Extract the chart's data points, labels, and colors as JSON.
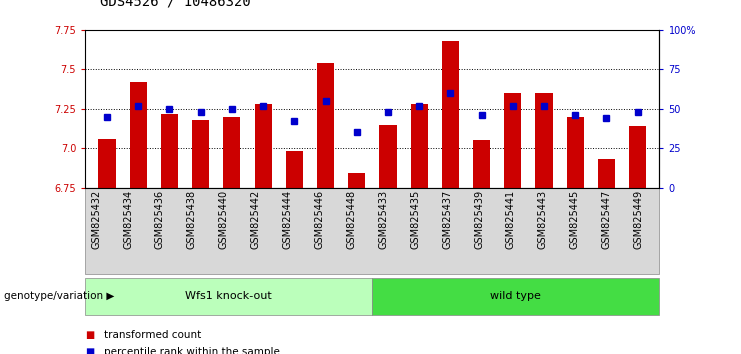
{
  "title": "GDS4526 / 10486320",
  "samples": [
    "GSM825432",
    "GSM825434",
    "GSM825436",
    "GSM825438",
    "GSM825440",
    "GSM825442",
    "GSM825444",
    "GSM825446",
    "GSM825448",
    "GSM825433",
    "GSM825435",
    "GSM825437",
    "GSM825439",
    "GSM825441",
    "GSM825443",
    "GSM825445",
    "GSM825447",
    "GSM825449"
  ],
  "bar_values": [
    7.06,
    7.42,
    7.22,
    7.18,
    7.2,
    7.28,
    6.98,
    7.54,
    6.84,
    7.15,
    7.28,
    7.68,
    7.05,
    7.35,
    7.35,
    7.2,
    6.93,
    7.14
  ],
  "blue_values": [
    45,
    52,
    50,
    48,
    50,
    52,
    42,
    55,
    35,
    48,
    52,
    60,
    46,
    52,
    52,
    46,
    44,
    48
  ],
  "ylim_left": [
    6.75,
    7.75
  ],
  "ylim_right": [
    0,
    100
  ],
  "yticks_left": [
    6.75,
    7.0,
    7.25,
    7.5,
    7.75
  ],
  "yticks_right": [
    0,
    25,
    50,
    75,
    100
  ],
  "bar_color": "#cc0000",
  "blue_color": "#0000cc",
  "group1_label": "Wfs1 knock-out",
  "group2_label": "wild type",
  "group1_count": 9,
  "group2_count": 9,
  "group1_color": "#bbffbb",
  "group2_color": "#44dd44",
  "xlabel_left": "genotype/variation",
  "legend1": "transformed count",
  "legend2": "percentile rank within the sample",
  "grid_color": "black",
  "tick_fontsize": 7,
  "title_fontsize": 10
}
